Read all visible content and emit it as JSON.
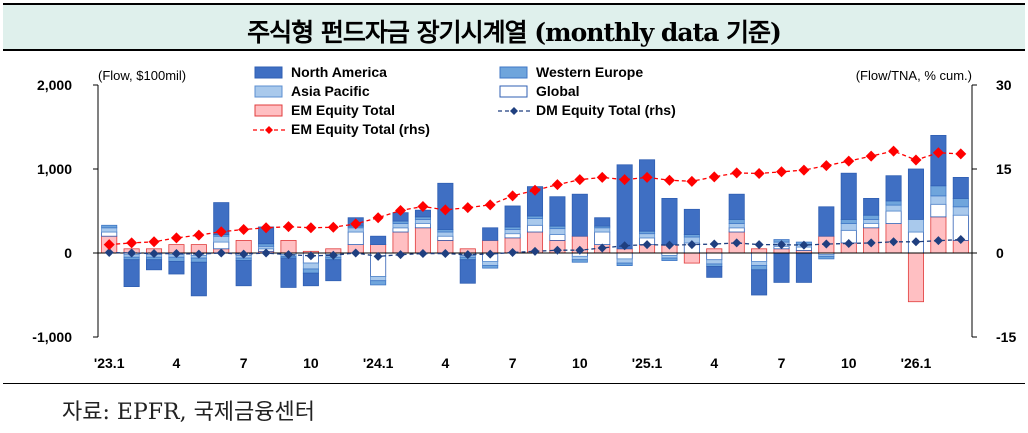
{
  "title": "주식형 펀드자금 장기시계열 (monthly data 기준)",
  "source": "자료: EPFR, 국제금융센터",
  "colors": {
    "north_america": "#3f6fc3",
    "western_europe": "#6fa5dc",
    "asia_pacific": "#a9c9ec",
    "global": "#ffffff",
    "em_equity": "#ffbfc2",
    "em_rhs": "#ff0000",
    "dm_rhs": "#1f3f7f"
  },
  "chart_data": {
    "type": "bar",
    "left_unit_label": "(Flow, $100mil)",
    "right_unit_label": "(Flow/TNA, % cum.)",
    "ylim": [
      -1000,
      2000
    ],
    "yticks": [
      -1000,
      0,
      1000,
      2000
    ],
    "ytick_labels": [
      "-1,000",
      "0",
      "1,000",
      "2,000"
    ],
    "y2lim": [
      -15,
      30
    ],
    "y2ticks": [
      -15,
      0,
      15,
      30
    ],
    "y2tick_labels": [
      "-15",
      "0",
      "15",
      "30"
    ],
    "categories": [
      "'23.1",
      "2",
      "3",
      "4",
      "5",
      "6",
      "7",
      "8",
      "9",
      "10",
      "11",
      "12",
      "'24.1",
      "2",
      "3",
      "4",
      "5",
      "6",
      "7",
      "8",
      "9",
      "10",
      "11",
      "12",
      "'25.1",
      "2",
      "3",
      "4",
      "5",
      "6",
      "7",
      "8",
      "9",
      "10",
      "11",
      "12",
      "'26.1",
      "2",
      "3"
    ],
    "xtick_labels": [
      "'23.1",
      "",
      "",
      "4",
      "",
      "",
      "7",
      "",
      "",
      "10",
      "",
      "",
      "'24.1",
      "",
      "",
      "4",
      "",
      "",
      "7",
      "",
      "",
      "10",
      "",
      "",
      "'25.1",
      "",
      "",
      "4",
      "",
      "",
      "7",
      "",
      "",
      "10",
      "",
      "",
      "'26.1",
      "",
      ""
    ],
    "legend": [
      {
        "name": "North America",
        "kind": "bar",
        "series": "north_america"
      },
      {
        "name": "Western Europe",
        "kind": "bar",
        "series": "western_europe"
      },
      {
        "name": "Asia Pacific",
        "kind": "bar",
        "series": "asia_pacific"
      },
      {
        "name": "Global",
        "kind": "bar",
        "series": "global"
      },
      {
        "name": "EM Equity Total",
        "kind": "bar",
        "series": "em_equity"
      },
      {
        "name": "DM Equity Total (rhs)",
        "kind": "line",
        "series": "dm_rhs"
      },
      {
        "name": "EM Equity Total (rhs)",
        "kind": "line",
        "series": "em_rhs"
      }
    ],
    "series": [
      {
        "key": "em_equity",
        "name": "EM Equity Total",
        "axis": "left",
        "values": [
          200,
          50,
          50,
          100,
          100,
          50,
          150,
          20,
          150,
          20,
          50,
          100,
          100,
          250,
          300,
          150,
          50,
          150,
          180,
          250,
          150,
          200,
          100,
          50,
          100,
          100,
          -120,
          50,
          250,
          50,
          50,
          30,
          200,
          120,
          300,
          350,
          -580,
          430,
          150
        ]
      },
      {
        "key": "global",
        "name": "Global",
        "axis": "left",
        "values": [
          50,
          -20,
          -20,
          -20,
          -30,
          80,
          -30,
          30,
          -20,
          -120,
          -20,
          150,
          -280,
          50,
          50,
          50,
          -30,
          -100,
          50,
          80,
          70,
          -40,
          150,
          -70,
          80,
          -30,
          120,
          -80,
          50,
          -100,
          30,
          40,
          -20,
          150,
          50,
          150,
          250,
          150,
          300
        ]
      },
      {
        "key": "asia_pacific",
        "name": "Asia Pacific",
        "axis": "left",
        "values": [
          50,
          -30,
          -30,
          -30,
          -30,
          70,
          -30,
          30,
          -20,
          -70,
          -30,
          50,
          -50,
          50,
          50,
          50,
          -20,
          -50,
          50,
          80,
          70,
          -40,
          50,
          -50,
          50,
          -30,
          70,
          -50,
          50,
          -50,
          50,
          30,
          -20,
          80,
          50,
          70,
          150,
          100,
          100
        ]
      },
      {
        "key": "western_europe",
        "name": "Western Europe",
        "axis": "left",
        "values": [
          30,
          -30,
          -30,
          -50,
          -50,
          20,
          -30,
          30,
          -20,
          -50,
          -30,
          20,
          -50,
          30,
          30,
          30,
          -30,
          -30,
          30,
          30,
          30,
          -30,
          20,
          -30,
          30,
          -30,
          30,
          -30,
          50,
          -50,
          30,
          30,
          -30,
          50,
          50,
          50,
          0,
          120,
          100
        ]
      },
      {
        "key": "north_america",
        "name": "North America",
        "axis": "left",
        "values": [
          0,
          -320,
          -120,
          -150,
          -400,
          380,
          -300,
          200,
          -350,
          -150,
          -250,
          100,
          100,
          100,
          80,
          550,
          -280,
          150,
          250,
          350,
          350,
          500,
          100,
          1000,
          850,
          550,
          300,
          -130,
          300,
          -300,
          -350,
          -350,
          350,
          550,
          200,
          300,
          600,
          600,
          250
        ]
      },
      {
        "key": "em_rhs",
        "name": "EM Equity Total (rhs)",
        "axis": "right",
        "values": [
          1.5,
          1.8,
          2.0,
          2.7,
          3.2,
          3.8,
          4.2,
          4.5,
          4.7,
          4.5,
          4.6,
          5.2,
          6.3,
          7.6,
          8.3,
          7.7,
          8.1,
          8.6,
          10.2,
          11.2,
          12.2,
          13.1,
          13.5,
          13.1,
          13.5,
          13.0,
          12.8,
          13.6,
          14.3,
          14.2,
          14.5,
          14.8,
          15.6,
          16.4,
          17.3,
          18.2,
          16.6,
          17.9,
          17.7
        ]
      },
      {
        "key": "dm_rhs",
        "name": "DM Equity Total (rhs)",
        "axis": "right",
        "values": [
          0.1,
          0.0,
          -0.1,
          -0.1,
          -0.2,
          0.0,
          -0.2,
          0.0,
          -0.3,
          -0.5,
          -0.4,
          0.0,
          -0.6,
          -0.3,
          -0.1,
          -0.1,
          -0.3,
          -0.2,
          0.1,
          0.3,
          0.5,
          0.5,
          0.9,
          1.3,
          1.5,
          1.4,
          1.5,
          1.6,
          1.8,
          1.5,
          1.5,
          1.4,
          1.6,
          1.7,
          1.8,
          2.0,
          2.0,
          2.2,
          2.4
        ]
      }
    ],
    "stack_order": [
      "em_equity",
      "global",
      "asia_pacific",
      "western_europe",
      "north_america"
    ],
    "grid": false
  }
}
